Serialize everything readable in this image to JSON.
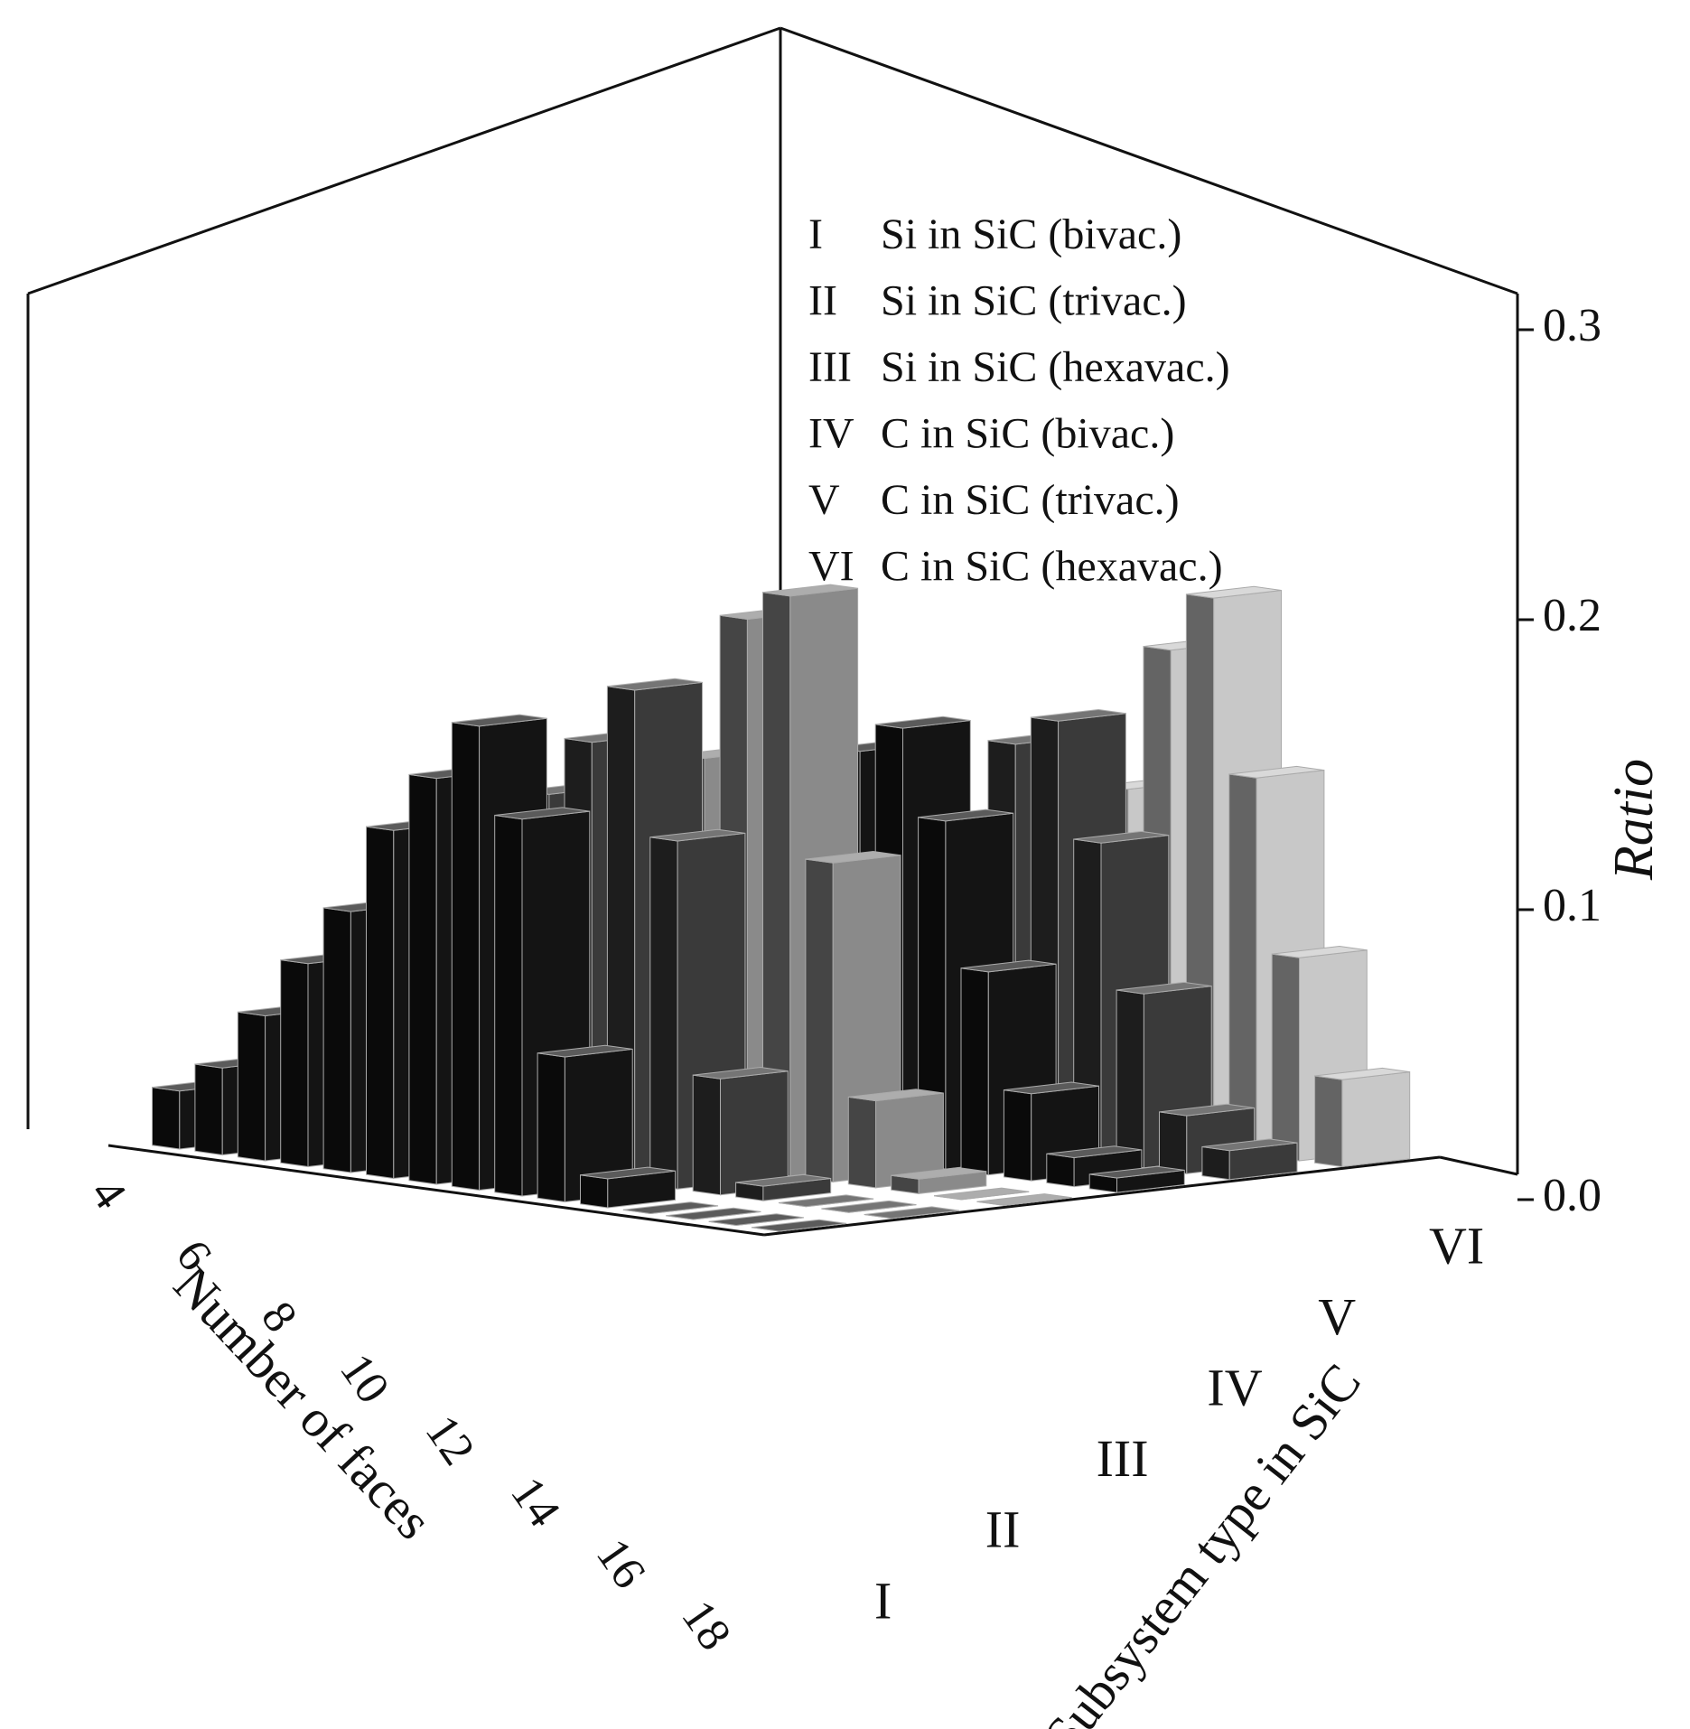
{
  "chart_data": {
    "type": "bar3d",
    "x_label": "Number of faces",
    "y_label": "Subsystem type in SiC",
    "z_label": "Ratio",
    "categories": [
      4,
      null,
      6,
      null,
      8,
      null,
      10,
      null,
      12,
      null,
      14,
      null,
      16,
      null,
      18
    ],
    "series": [
      {
        "label": "I",
        "name": "Si in SiC (bivac.)",
        "color": "#141414",
        "values": [
          0.02,
          0.03,
          0.05,
          0.07,
          0.09,
          0.12,
          0.14,
          0.16,
          0.13,
          0.05,
          0.01,
          0,
          0,
          0,
          0
        ]
      },
      {
        "label": "II",
        "name": "Si in SiC (trivac.)",
        "color": "#3a3a3a",
        "values": [
          0.01,
          0.02,
          0.04,
          0.06,
          0.08,
          0.1,
          0.13,
          0.15,
          0.17,
          0.12,
          0.04,
          0.005,
          0,
          0,
          0
        ]
      },
      {
        "label": "III",
        "name": "Si in SiC (hexavac.)",
        "color": "#8a8a8a",
        "values": [
          0,
          0.005,
          0.01,
          0.02,
          0.04,
          0.07,
          0.1,
          0.14,
          0.19,
          0.2,
          0.11,
          0.03,
          0.005,
          0,
          0
        ]
      },
      {
        "label": "IV",
        "name": "C in SiC (bivac.)",
        "color": "#141414",
        "values": [
          0,
          0,
          0,
          0.01,
          0.03,
          0.06,
          0.09,
          0.12,
          0.14,
          0.15,
          0.12,
          0.07,
          0.03,
          0.01,
          0.005
        ]
      },
      {
        "label": "V",
        "name": "C in SiC (trivac.)",
        "color": "#3a3a3a",
        "values": [
          0,
          0,
          0,
          0,
          0.01,
          0.03,
          0.05,
          0.08,
          0.11,
          0.14,
          0.15,
          0.11,
          0.06,
          0.02,
          0.01
        ]
      },
      {
        "label": "VI",
        "name": "C in SiC (hexavac.)",
        "color": "#c8c8c8",
        "values": [
          0,
          0,
          0,
          0,
          0,
          0.01,
          0.02,
          0.05,
          0.08,
          0.12,
          0.17,
          0.19,
          0.13,
          0.07,
          0.03
        ]
      }
    ],
    "zlim": [
      0,
      0.3
    ],
    "zticks": [
      {
        "value": 0,
        "label": "0.0"
      },
      0.1,
      0.2,
      0.3
    ]
  }
}
